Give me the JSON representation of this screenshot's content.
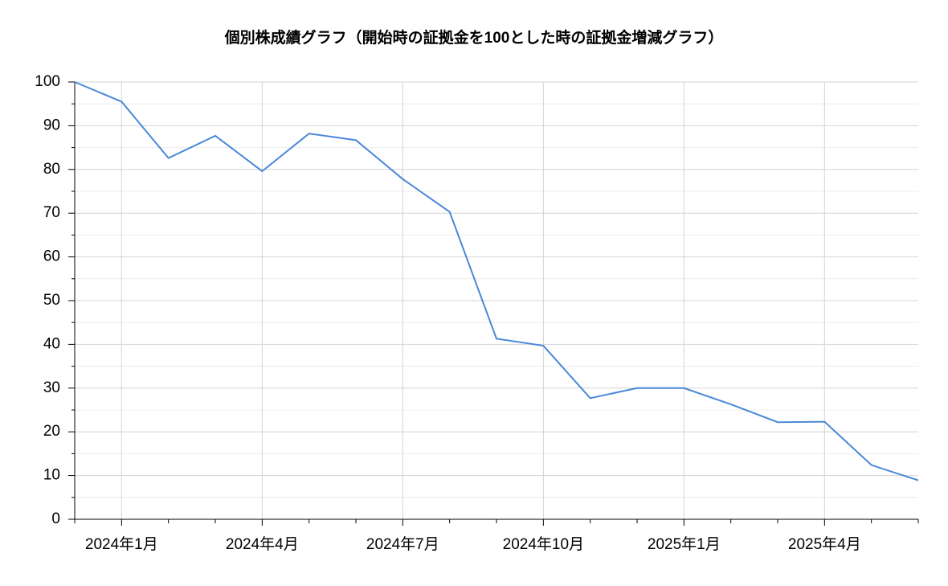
{
  "chart_data": {
    "type": "line",
    "title": "個別株成績グラフ（開始時の証拠金を100とした時の証拠金増減グラフ）",
    "categories": [
      null,
      "2024年1月",
      null,
      null,
      "2024年4月",
      null,
      null,
      "2024年7月",
      null,
      null,
      "2024年10月",
      null,
      null,
      "2025年1月",
      null,
      null,
      "2025年4月",
      null,
      null
    ],
    "series": [
      {
        "name": "証拠金",
        "color": "#4a88d8",
        "values": [
          100,
          95.5,
          82.6,
          87.7,
          79.6,
          88.2,
          86.7,
          77.8,
          70.3,
          41.3,
          39.7,
          27.7,
          30.0,
          30.0,
          26.3,
          22.2,
          22.3,
          12.4,
          8.9
        ]
      }
    ],
    "ylim": [
      0,
      100
    ],
    "yticks": [
      0,
      10,
      20,
      30,
      40,
      50,
      60,
      70,
      80,
      90,
      100
    ],
    "grid": true
  }
}
